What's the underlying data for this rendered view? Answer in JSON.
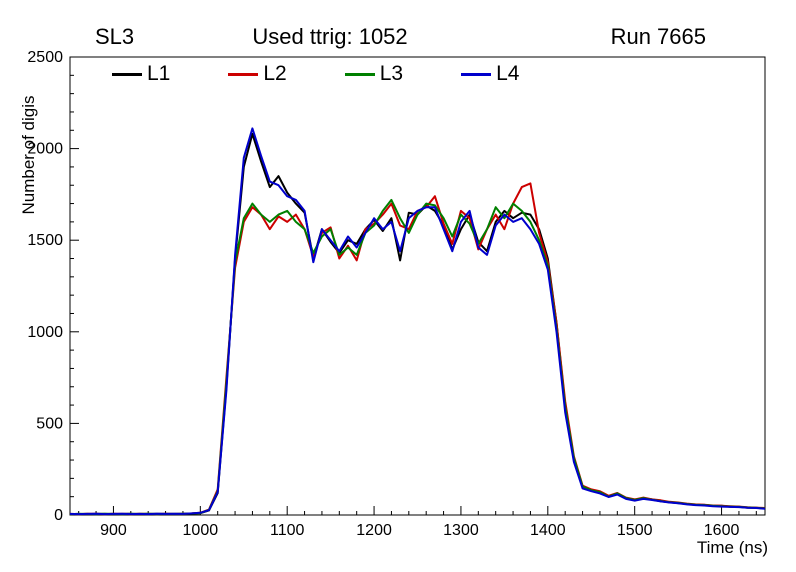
{
  "header": {
    "left": "SL3",
    "center": "Used ttrig: 1052",
    "right": "Run 7665"
  },
  "chart_data": {
    "type": "line",
    "title": "",
    "xlabel": "Time (ns)",
    "ylabel": "Number of digis",
    "xlim": [
      850,
      1650
    ],
    "ylim": [
      0,
      2500
    ],
    "x_ticks": [
      900,
      1000,
      1100,
      1200,
      1300,
      1400,
      1500,
      1600
    ],
    "y_ticks": [
      0,
      500,
      1000,
      1500,
      2000,
      2500
    ],
    "x_minor_step": 20,
    "y_minor_step": 100,
    "grid": false,
    "legend_position": "top-inside",
    "x_start": 850,
    "x_step": 10,
    "series": [
      {
        "name": "L1",
        "color": "#000000",
        "values": [
          5,
          6,
          5,
          7,
          6,
          5,
          6,
          7,
          5,
          6,
          7,
          6,
          5,
          6,
          8,
          10,
          25,
          120,
          700,
          1400,
          1900,
          2080,
          1930,
          1790,
          1850,
          1760,
          1700,
          1650,
          1400,
          1560,
          1490,
          1430,
          1500,
          1480,
          1560,
          1610,
          1550,
          1620,
          1390,
          1650,
          1640,
          1690,
          1660,
          1580,
          1450,
          1560,
          1640,
          1490,
          1440,
          1600,
          1660,
          1620,
          1650,
          1640,
          1560,
          1400,
          1050,
          600,
          300,
          150,
          135,
          120,
          100,
          115,
          90,
          80,
          90,
          85,
          75,
          70,
          65,
          60,
          55,
          55,
          50,
          50,
          45,
          45,
          40,
          40,
          35
        ]
      },
      {
        "name": "L2",
        "color": "#cc0000",
        "values": [
          6,
          5,
          7,
          6,
          5,
          7,
          6,
          5,
          7,
          6,
          5,
          7,
          6,
          7,
          9,
          12,
          30,
          140,
          750,
          1350,
          1600,
          1680,
          1640,
          1560,
          1630,
          1600,
          1640,
          1560,
          1410,
          1540,
          1570,
          1400,
          1470,
          1390,
          1560,
          1590,
          1640,
          1700,
          1580,
          1560,
          1660,
          1680,
          1740,
          1590,
          1480,
          1660,
          1620,
          1450,
          1560,
          1640,
          1560,
          1700,
          1790,
          1810,
          1540,
          1380,
          1050,
          620,
          320,
          160,
          140,
          130,
          105,
          120,
          95,
          85,
          95,
          85,
          80,
          72,
          68,
          62,
          58,
          56,
          52,
          50,
          48,
          46,
          42,
          40,
          38
        ]
      },
      {
        "name": "L3",
        "color": "#008000",
        "values": [
          5,
          6,
          6,
          5,
          7,
          6,
          5,
          6,
          6,
          7,
          5,
          6,
          6,
          7,
          8,
          11,
          28,
          130,
          720,
          1380,
          1620,
          1700,
          1640,
          1600,
          1640,
          1660,
          1600,
          1560,
          1430,
          1520,
          1560,
          1420,
          1460,
          1420,
          1540,
          1580,
          1660,
          1720,
          1620,
          1540,
          1640,
          1700,
          1690,
          1620,
          1520,
          1640,
          1590,
          1480,
          1560,
          1680,
          1620,
          1700,
          1660,
          1600,
          1500,
          1360,
          1020,
          590,
          310,
          155,
          135,
          125,
          100,
          118,
          92,
          82,
          92,
          83,
          76,
          70,
          66,
          60,
          56,
          54,
          50,
          48,
          46,
          44,
          41,
          39,
          36
        ]
      },
      {
        "name": "L4",
        "color": "#0000cc",
        "values": [
          6,
          5,
          6,
          7,
          5,
          6,
          7,
          5,
          6,
          5,
          7,
          6,
          7,
          6,
          9,
          12,
          26,
          125,
          680,
          1420,
          1950,
          2110,
          1960,
          1820,
          1800,
          1740,
          1720,
          1660,
          1380,
          1560,
          1500,
          1440,
          1520,
          1460,
          1540,
          1620,
          1560,
          1600,
          1440,
          1620,
          1660,
          1680,
          1680,
          1560,
          1440,
          1600,
          1660,
          1460,
          1420,
          1580,
          1640,
          1600,
          1620,
          1560,
          1480,
          1340,
          1000,
          560,
          290,
          145,
          130,
          118,
          98,
          112,
          88,
          78,
          88,
          82,
          74,
          68,
          64,
          58,
          54,
          52,
          48,
          46,
          44,
          43,
          40,
          38,
          34
        ]
      }
    ]
  }
}
